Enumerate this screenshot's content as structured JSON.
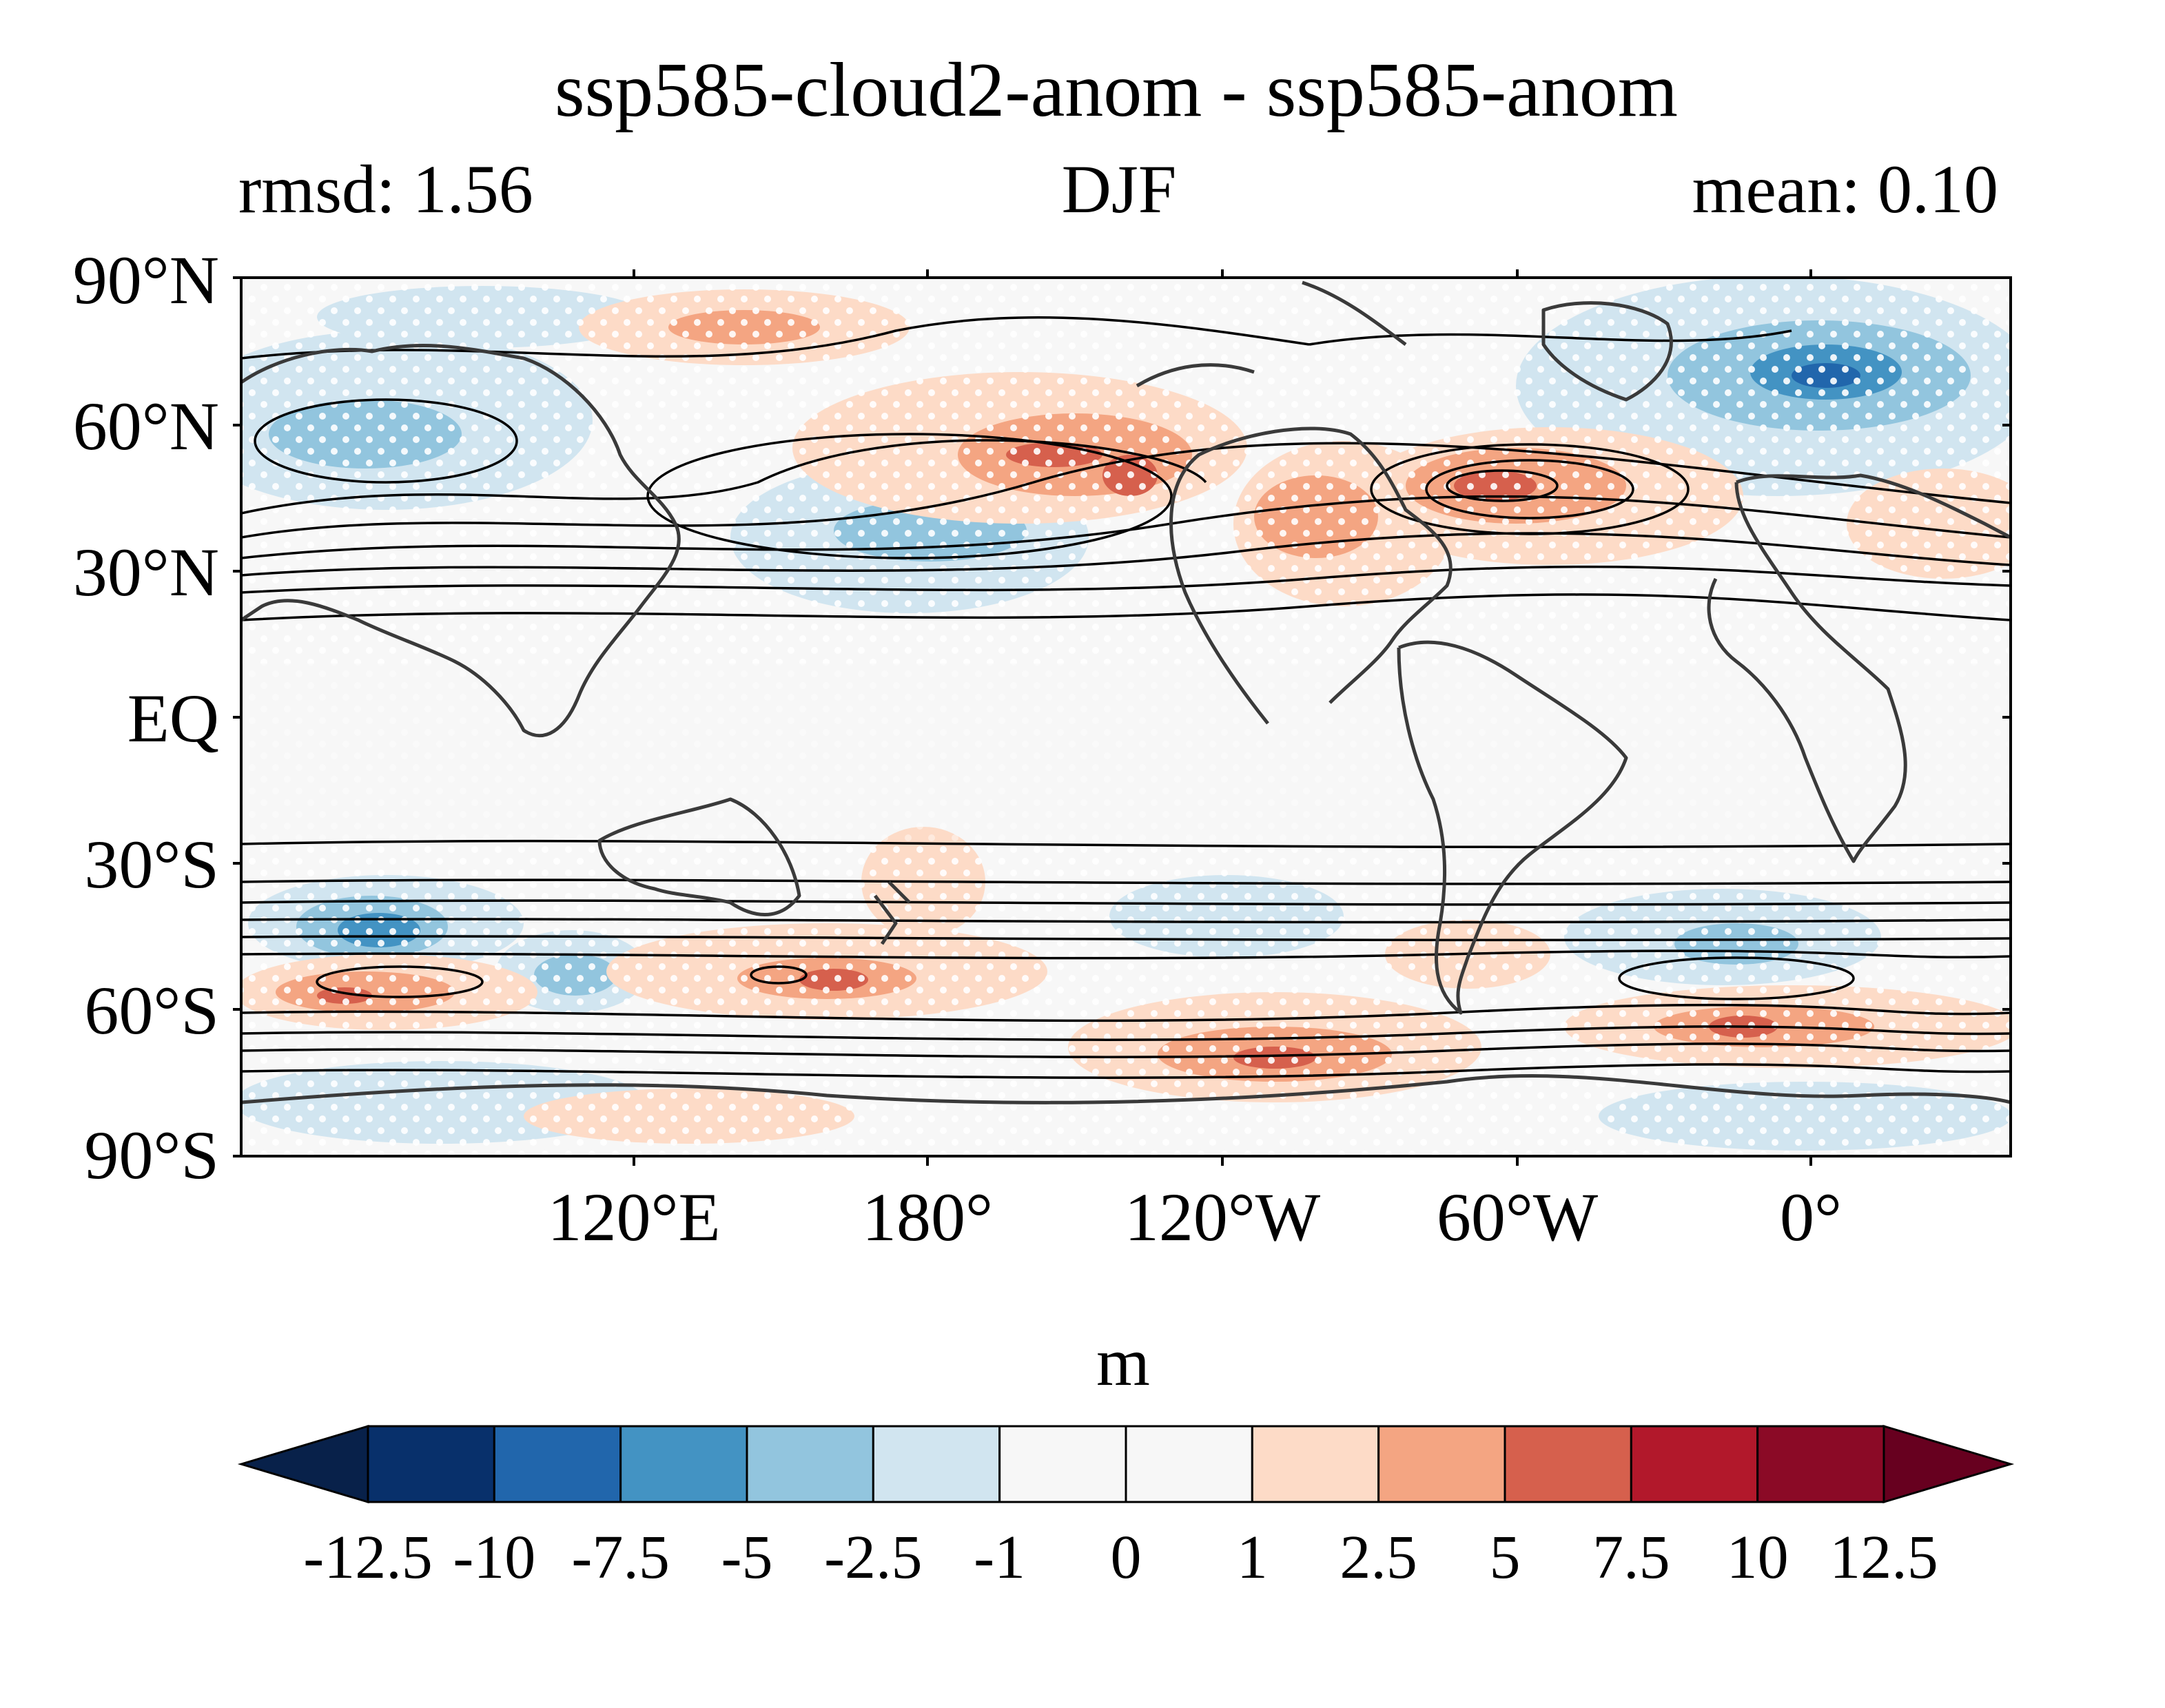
{
  "title": "ssp585-cloud2-anom - ssp585-anom",
  "left_label": "rmsd: 1.56",
  "center_label": "DJF",
  "right_label": "mean: 0.10",
  "map": {
    "projection": "equirectangular, central longitude 180",
    "lat_ticks": [
      "90°N",
      "60°N",
      "30°N",
      "EQ",
      "30°S",
      "60°S",
      "90°S"
    ],
    "lon_ticks": [
      "120°E",
      "180°",
      "120°W",
      "60°W",
      "0°"
    ],
    "field": "shaded anomaly difference with stippling and black contour overlay",
    "coastline_color": "#3a3a3a"
  },
  "colorbar": {
    "unit": "m",
    "levels": [
      "-12.5",
      "-10",
      "-7.5",
      "-5",
      "-2.5",
      "-1",
      "0",
      "1",
      "2.5",
      "5",
      "7.5",
      "10",
      "12.5"
    ],
    "colors": [
      "#08214a",
      "#08306b",
      "#2166ac",
      "#4393c3",
      "#92c5de",
      "#d1e5f0",
      "#f7f7f7",
      "#f7f7f7",
      "#fddbc7",
      "#f4a582",
      "#d6604d",
      "#b2182b",
      "#8b0a26",
      "#67001f"
    ],
    "extend": "both"
  }
}
